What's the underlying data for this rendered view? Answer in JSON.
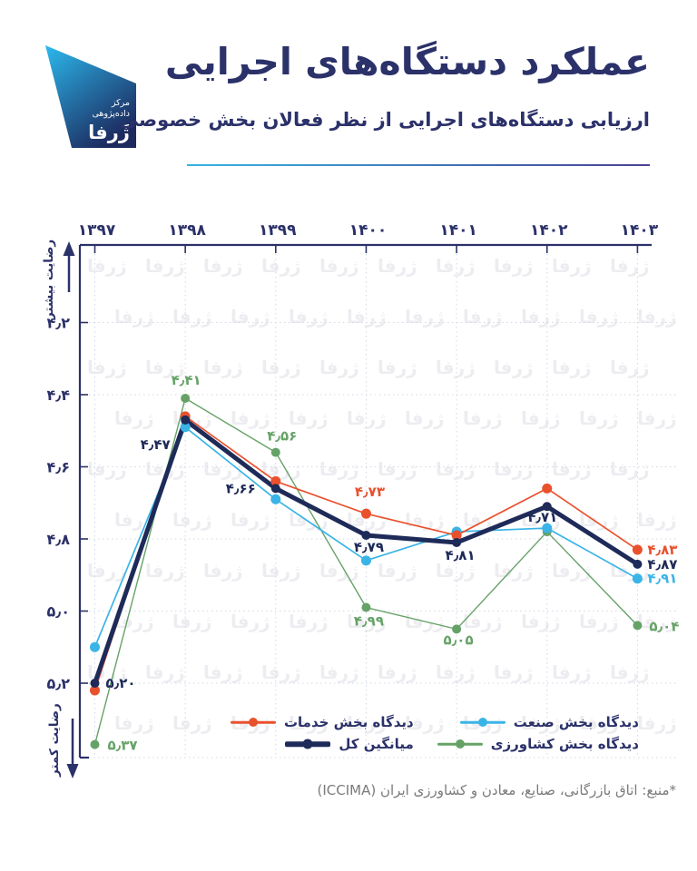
{
  "header": {
    "title": "عملکرد دستگاه‌های اجرایی",
    "subtitle": "ارزیابی دستگاه‌های اجرایی از نظر فعالان بخش خصوصی",
    "logo_lines": [
      "مرکز",
      "داده‌پژوهی",
      "ژَرفا"
    ],
    "accent_gradient": [
      "#36b3e4",
      "#4a4193"
    ]
  },
  "watermark_text": "ژرفا",
  "chart_data": {
    "type": "line",
    "categories": [
      "۱۳۹۷",
      "۱۳۹۸",
      "۱۳۹۹",
      "۱۴۰۰",
      "۱۴۰۱",
      "۱۴۰۲",
      "۱۴۰۳"
    ],
    "y_axis": {
      "ticks": [
        "۴٫۲",
        "۴٫۴",
        "۴٫۶",
        "۴٫۸",
        "۵٫۰",
        "۵٫۲"
      ],
      "tick_values": [
        4.2,
        4.4,
        4.6,
        4.8,
        5.0,
        5.2
      ],
      "range": [
        4.2,
        5.2
      ],
      "inverted": true,
      "top_arrow_label": "رضایت بیشتر",
      "bottom_arrow_label": "رضایت کمتر"
    },
    "grid": true,
    "legend_position": "bottom",
    "series": [
      {
        "id": "services",
        "name": "دیدگاه بخش خدمات",
        "color": "#e9512d",
        "emphasis": false,
        "values": [
          5.22,
          4.46,
          4.64,
          4.73,
          4.79,
          4.66,
          4.83
        ],
        "point_labels": [
          null,
          null,
          null,
          "۴٫۷۳",
          null,
          null,
          "۴٫۸۳"
        ]
      },
      {
        "id": "industry",
        "name": "دیدگاه بخش صنعت",
        "color": "#3ab4e7",
        "emphasis": false,
        "values": [
          5.1,
          4.49,
          4.69,
          4.86,
          4.78,
          4.77,
          4.91
        ],
        "point_labels": [
          null,
          null,
          null,
          null,
          null,
          null,
          "۴٫۹۱"
        ]
      },
      {
        "id": "agriculture",
        "name": "دیدگاه بخش کشاورزی",
        "color": "#66a267",
        "emphasis": false,
        "values": [
          5.37,
          4.41,
          4.56,
          4.99,
          5.05,
          4.78,
          5.04
        ],
        "point_labels": [
          "۵٫۳۷",
          "۴٫۴۱",
          "۴٫۵۶",
          "۴٫۹۹",
          "۵٫۰۵",
          null,
          "۵٫۰۴"
        ]
      },
      {
        "id": "average",
        "name": "میانگین کل",
        "color": "#1e2a58",
        "emphasis": true,
        "values": [
          5.2,
          4.47,
          4.66,
          4.79,
          4.81,
          4.71,
          4.87
        ],
        "point_labels": [
          "۵٫۲۰",
          "۴٫۴۷",
          "۴٫۶۶",
          "۴٫۷۹",
          "۴٫۸۱",
          "۴٫۷۱",
          "۴٫۸۷"
        ]
      }
    ]
  },
  "legend_display_order": [
    1,
    0,
    2,
    3
  ],
  "footer": {
    "source": "*منبع: اتاق بازرگانی، صنایع، معادن و کشاورزی ایران (ICCIMA)"
  }
}
